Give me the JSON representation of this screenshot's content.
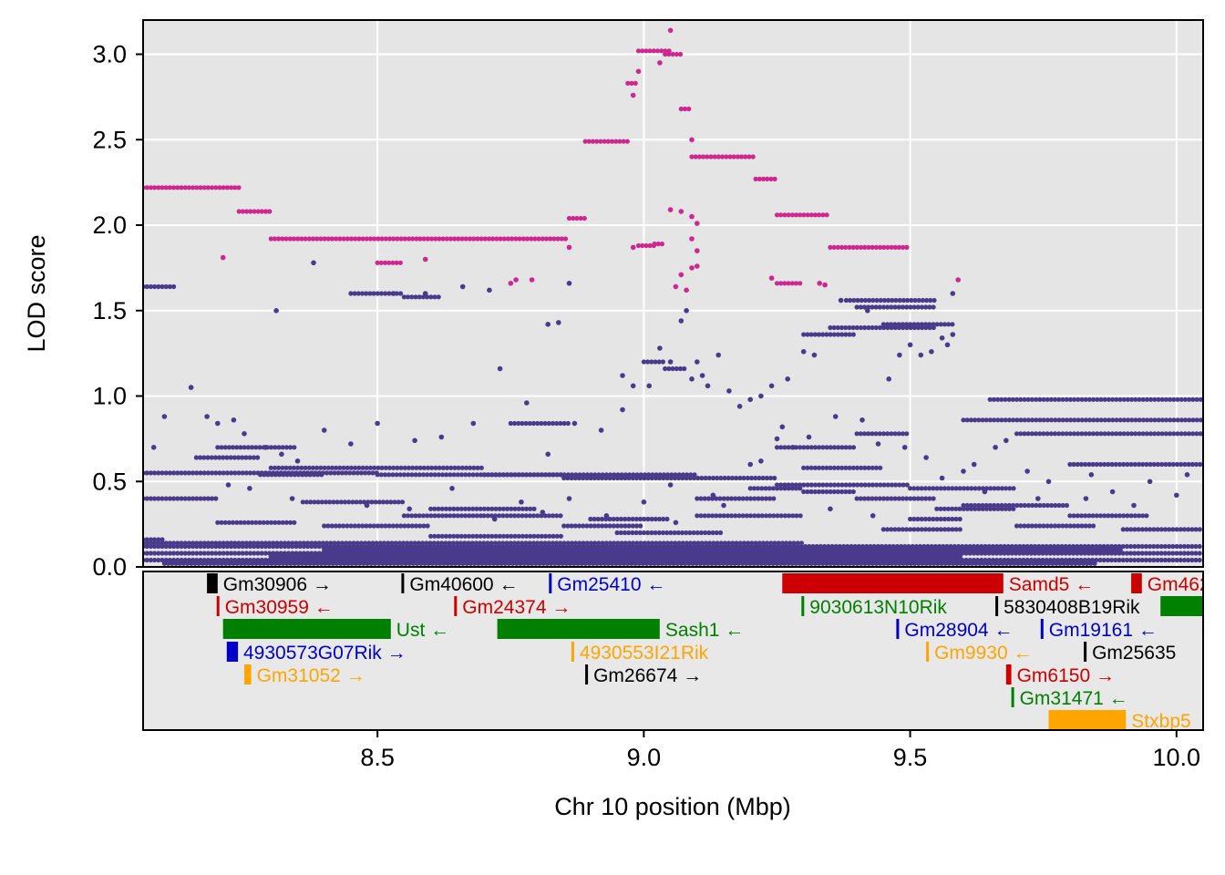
{
  "chart_data": {
    "type": "scatter",
    "xlabel": "Chr 10 position (Mbp)",
    "ylabel": "LOD score",
    "xlim": [
      8.06,
      10.05
    ],
    "ylim": [
      0,
      3.2
    ],
    "x_ticks": [
      {
        "value": 8.5,
        "label": "8.5"
      },
      {
        "value": 9.0,
        "label": "9.0"
      },
      {
        "value": 9.5,
        "label": "9.5"
      },
      {
        "value": 10.0,
        "label": "10.0"
      }
    ],
    "y_ticks": [
      {
        "value": 0.0,
        "label": "0.0"
      },
      {
        "value": 0.5,
        "label": "0.5"
      },
      {
        "value": 1.0,
        "label": "1.0"
      },
      {
        "value": 1.5,
        "label": "1.5"
      },
      {
        "value": 2.0,
        "label": "2.0"
      },
      {
        "value": 2.5,
        "label": "2.5"
      },
      {
        "value": 3.0,
        "label": "3.0"
      }
    ],
    "grid": true,
    "colors": {
      "highlight": "#D02690",
      "background": "#4A3A8C",
      "panel": "#E5E5E5",
      "gridline": "#FFFFFF"
    },
    "series": [
      {
        "color": "#D02690",
        "segments": [
          [
            8.06,
            8.24,
            2.22
          ],
          [
            8.24,
            8.3,
            2.08
          ],
          [
            8.3,
            8.58,
            1.92
          ],
          [
            8.58,
            8.86,
            1.92
          ],
          [
            8.86,
            8.89,
            2.04
          ],
          [
            8.89,
            8.97,
            2.49
          ],
          [
            8.97,
            8.99,
            2.83
          ],
          [
            8.99,
            9.05,
            3.02
          ],
          [
            9.04,
            9.07,
            3.0
          ],
          [
            9.07,
            9.09,
            2.68
          ],
          [
            9.09,
            9.21,
            2.4
          ],
          [
            9.21,
            9.25,
            2.27
          ],
          [
            9.25,
            9.35,
            2.06
          ],
          [
            9.35,
            9.5,
            1.87
          ],
          [
            8.5,
            8.55,
            1.78
          ],
          [
            9.25,
            9.3,
            1.66
          ],
          [
            8.99,
            9.02,
            1.88
          ],
          [
            9.02,
            9.04,
            1.89
          ]
        ],
        "points": [
          [
            9.05,
            3.14
          ],
          [
            8.21,
            1.81
          ],
          [
            8.59,
            1.8
          ],
          [
            8.76,
            1.68
          ],
          [
            8.79,
            1.68
          ],
          [
            8.75,
            1.66
          ],
          [
            8.86,
            1.87
          ],
          [
            9.59,
            1.68
          ],
          [
            9.24,
            1.69
          ],
          [
            9.33,
            1.66
          ],
          [
            9.34,
            1.65
          ],
          [
            9.05,
            2.09
          ],
          [
            9.07,
            2.08
          ],
          [
            9.09,
            2.05
          ],
          [
            9.1,
            2.01
          ],
          [
            9.09,
            1.92
          ],
          [
            9.1,
            1.85
          ],
          [
            9.09,
            1.75
          ],
          [
            9.1,
            1.76
          ],
          [
            9.07,
            1.71
          ],
          [
            9.06,
            1.64
          ],
          [
            9.08,
            1.62
          ],
          [
            9.09,
            2.5
          ],
          [
            8.98,
            1.87
          ],
          [
            8.98,
            2.76
          ],
          [
            8.99,
            2.9
          ],
          [
            9.03,
            2.95
          ]
        ]
      },
      {
        "color": "#4A3A8C",
        "segments": [
          [
            8.06,
            10.05,
            0.08
          ],
          [
            8.06,
            10.05,
            0.04
          ],
          [
            8.06,
            10.05,
            0.12
          ],
          [
            8.1,
            9.85,
            0.02
          ],
          [
            8.3,
            9.6,
            0.06
          ],
          [
            8.4,
            9.9,
            0.1
          ],
          [
            8.06,
            8.1,
            0.16
          ],
          [
            8.06,
            9.3,
            0.14
          ],
          [
            8.06,
            8.5,
            0.55
          ],
          [
            8.3,
            8.7,
            0.58
          ],
          [
            8.5,
            8.85,
            0.54
          ],
          [
            8.7,
            9.1,
            0.54
          ],
          [
            8.85,
            9.25,
            0.52
          ],
          [
            9.25,
            9.5,
            0.48
          ],
          [
            9.5,
            9.7,
            0.46
          ],
          [
            9.6,
            10.05,
            0.86
          ],
          [
            9.65,
            10.05,
            0.98
          ],
          [
            9.7,
            10.05,
            0.78
          ],
          [
            9.8,
            10.05,
            0.6
          ],
          [
            8.16,
            8.28,
            0.64
          ],
          [
            8.2,
            8.35,
            0.7
          ],
          [
            8.28,
            8.4,
            0.54
          ],
          [
            8.36,
            8.55,
            0.38
          ],
          [
            8.55,
            8.7,
            0.3
          ],
          [
            8.6,
            8.85,
            0.18
          ],
          [
            8.75,
            8.86,
            0.84
          ],
          [
            8.7,
            8.85,
            0.3
          ],
          [
            8.85,
            9.0,
            0.24
          ],
          [
            8.9,
            9.05,
            0.28
          ],
          [
            8.95,
            9.15,
            0.2
          ],
          [
            9.1,
            9.3,
            0.3
          ],
          [
            9.25,
            9.4,
            0.7
          ],
          [
            9.3,
            9.45,
            0.58
          ],
          [
            9.35,
            9.55,
            1.4
          ],
          [
            9.45,
            9.58,
            1.42
          ],
          [
            9.38,
            9.55,
            1.56
          ],
          [
            9.4,
            9.55,
            1.52
          ],
          [
            8.06,
            8.12,
            1.64
          ],
          [
            8.45,
            8.55,
            1.6
          ],
          [
            8.55,
            8.62,
            1.58
          ],
          [
            9.0,
            9.04,
            1.2
          ],
          [
            9.04,
            9.08,
            1.16
          ],
          [
            9.3,
            9.4,
            1.36
          ],
          [
            9.4,
            9.5,
            0.78
          ],
          [
            9.45,
            9.6,
            0.22
          ],
          [
            9.55,
            9.7,
            0.34
          ],
          [
            9.6,
            9.8,
            0.36
          ],
          [
            9.7,
            9.85,
            0.24
          ],
          [
            9.8,
            9.95,
            0.3
          ],
          [
            9.9,
            10.05,
            0.22
          ],
          [
            8.06,
            8.2,
            0.4
          ],
          [
            8.2,
            8.35,
            0.26
          ],
          [
            8.4,
            8.6,
            0.24
          ],
          [
            8.6,
            8.8,
            0.34
          ],
          [
            9.1,
            9.25,
            0.4
          ],
          [
            9.2,
            9.3,
            0.46
          ],
          [
            9.3,
            9.4,
            0.44
          ],
          [
            9.4,
            9.55,
            0.4
          ],
          [
            9.5,
            9.6,
            0.28
          ]
        ],
        "points": [
          [
            8.31,
            1.5
          ],
          [
            8.38,
            1.78
          ],
          [
            8.53,
            1.6
          ],
          [
            8.59,
            1.6
          ],
          [
            8.66,
            1.64
          ],
          [
            8.71,
            1.62
          ],
          [
            8.73,
            1.16
          ],
          [
            8.82,
            1.42
          ],
          [
            8.84,
            1.43
          ],
          [
            8.86,
            1.66
          ],
          [
            8.96,
            1.12
          ],
          [
            8.98,
            1.06
          ],
          [
            9.01,
            1.06
          ],
          [
            9.03,
            1.28
          ],
          [
            9.05,
            1.2
          ],
          [
            9.07,
            1.44
          ],
          [
            9.08,
            1.5
          ],
          [
            9.09,
            1.1
          ],
          [
            9.1,
            1.2
          ],
          [
            9.11,
            1.12
          ],
          [
            9.12,
            1.06
          ],
          [
            9.14,
            1.24
          ],
          [
            9.16,
            1.03
          ],
          [
            9.18,
            0.94
          ],
          [
            9.2,
            0.98
          ],
          [
            9.22,
            1.0
          ],
          [
            9.24,
            1.06
          ],
          [
            9.27,
            1.1
          ],
          [
            9.3,
            1.26
          ],
          [
            9.32,
            1.24
          ],
          [
            9.37,
            1.56
          ],
          [
            9.42,
            1.5
          ],
          [
            9.46,
            1.1
          ],
          [
            9.48,
            1.24
          ],
          [
            9.5,
            1.3
          ],
          [
            9.52,
            1.24
          ],
          [
            9.54,
            1.26
          ],
          [
            9.56,
            1.34
          ],
          [
            9.58,
            1.36
          ],
          [
            9.58,
            1.6
          ],
          [
            9.57,
            1.3
          ],
          [
            8.15,
            1.05
          ],
          [
            8.18,
            0.88
          ],
          [
            8.2,
            0.84
          ],
          [
            8.23,
            0.86
          ],
          [
            8.25,
            0.78
          ],
          [
            8.29,
            0.7
          ],
          [
            8.32,
            0.66
          ],
          [
            8.35,
            0.62
          ],
          [
            8.4,
            0.8
          ],
          [
            8.45,
            0.72
          ],
          [
            8.5,
            0.84
          ],
          [
            8.57,
            0.74
          ],
          [
            8.62,
            0.76
          ],
          [
            8.68,
            0.84
          ],
          [
            8.78,
            0.96
          ],
          [
            8.82,
            0.66
          ],
          [
            8.87,
            0.84
          ],
          [
            8.92,
            0.8
          ],
          [
            8.96,
            0.92
          ],
          [
            9.05,
            0.48
          ],
          [
            9.13,
            0.42
          ],
          [
            9.2,
            0.6
          ],
          [
            9.22,
            0.62
          ],
          [
            9.25,
            0.75
          ],
          [
            9.26,
            0.82
          ],
          [
            9.28,
            0.7
          ],
          [
            9.31,
            0.76
          ],
          [
            9.36,
            0.88
          ],
          [
            9.41,
            0.86
          ],
          [
            9.44,
            0.72
          ],
          [
            9.49,
            0.7
          ],
          [
            9.53,
            0.64
          ],
          [
            9.6,
            0.56
          ],
          [
            9.62,
            0.6
          ],
          [
            9.66,
            0.7
          ],
          [
            9.68,
            0.74
          ],
          [
            9.72,
            0.56
          ],
          [
            9.76,
            0.5
          ],
          [
            9.84,
            0.54
          ],
          [
            9.88,
            0.44
          ],
          [
            9.95,
            0.5
          ],
          [
            10.02,
            0.54
          ],
          [
            8.1,
            0.88
          ],
          [
            8.08,
            0.7
          ],
          [
            8.22,
            0.48
          ],
          [
            8.26,
            0.46
          ],
          [
            8.34,
            0.4
          ],
          [
            8.48,
            0.36
          ],
          [
            8.56,
            0.34
          ],
          [
            8.64,
            0.46
          ],
          [
            8.72,
            0.28
          ],
          [
            8.77,
            0.38
          ],
          [
            8.81,
            0.32
          ],
          [
            8.86,
            0.4
          ],
          [
            8.93,
            0.3
          ],
          [
            9.0,
            0.38
          ],
          [
            9.06,
            0.26
          ],
          [
            9.15,
            0.36
          ],
          [
            9.35,
            0.34
          ],
          [
            9.43,
            0.3
          ],
          [
            9.56,
            0.52
          ],
          [
            9.64,
            0.44
          ],
          [
            9.74,
            0.4
          ],
          [
            9.83,
            0.4
          ],
          [
            9.92,
            0.36
          ],
          [
            10.0,
            0.42
          ]
        ]
      }
    ],
    "genes": [
      {
        "name": "Gm30906",
        "start": 8.18,
        "end": 8.2,
        "color": "#000000",
        "strand": "→",
        "row": 0
      },
      {
        "name": "Gm40600",
        "start": 8.545,
        "end": 8.55,
        "color": "#000000",
        "strand": "←",
        "row": 0
      },
      {
        "name": "Gm25410",
        "start": 8.822,
        "end": 8.826,
        "color": "#0000CC",
        "strand": "←",
        "row": 0
      },
      {
        "name": "Samd5",
        "start": 9.26,
        "end": 9.675,
        "color": "#CC0000",
        "strand": "←",
        "row": 0
      },
      {
        "name": "Gm462",
        "start": 9.915,
        "end": 9.935,
        "color": "#CC0000",
        "strand": "",
        "row": 0
      },
      {
        "name": "Gm30959",
        "start": 8.198,
        "end": 8.202,
        "color": "#CC0000",
        "strand": "←",
        "row": 1
      },
      {
        "name": "Gm24374",
        "start": 8.644,
        "end": 8.648,
        "color": "#CC0000",
        "strand": "→",
        "row": 1
      },
      {
        "name": "9030613N10Rik",
        "start": 9.296,
        "end": 9.3,
        "color": "#008000",
        "strand": "",
        "row": 1
      },
      {
        "name": "5830408B19Rik",
        "start": 9.66,
        "end": 9.664,
        "color": "#000000",
        "strand": "",
        "row": 1
      },
      {
        "name": "",
        "start": 9.97,
        "end": 10.05,
        "color": "#008000",
        "strand": "",
        "row": 1
      },
      {
        "name": "Ust",
        "start": 8.21,
        "end": 8.525,
        "color": "#008000",
        "strand": "←",
        "row": 2
      },
      {
        "name": "Sash1",
        "start": 8.725,
        "end": 9.03,
        "color": "#008000",
        "strand": "←",
        "row": 2
      },
      {
        "name": "Gm28904",
        "start": 9.474,
        "end": 9.478,
        "color": "#0000CC",
        "strand": "←",
        "row": 2
      },
      {
        "name": "Gm19161",
        "start": 9.745,
        "end": 9.749,
        "color": "#0000CC",
        "strand": "←",
        "row": 2
      },
      {
        "name": "4930573G07Rik",
        "start": 8.217,
        "end": 8.238,
        "color": "#0000CC",
        "strand": "→",
        "row": 3
      },
      {
        "name": "4930553I21Rik",
        "start": 8.864,
        "end": 8.868,
        "color": "#FFA500",
        "strand": "",
        "row": 3
      },
      {
        "name": "Gm9930",
        "start": 9.53,
        "end": 9.534,
        "color": "#FFA500",
        "strand": "←",
        "row": 3
      },
      {
        "name": "Gm25635",
        "start": 9.826,
        "end": 9.83,
        "color": "#000000",
        "strand": "",
        "row": 3
      },
      {
        "name": "Gm31052",
        "start": 8.25,
        "end": 8.263,
        "color": "#FFA500",
        "strand": "→",
        "row": 4
      },
      {
        "name": "Gm26674",
        "start": 8.89,
        "end": 8.894,
        "color": "#000000",
        "strand": "→",
        "row": 4
      },
      {
        "name": "Gm6150",
        "start": 9.68,
        "end": 9.69,
        "color": "#CC0000",
        "strand": "→",
        "row": 4
      },
      {
        "name": "Gm31471",
        "start": 9.69,
        "end": 9.694,
        "color": "#008000",
        "strand": "←",
        "row": 5
      },
      {
        "name": "Stxbp5",
        "start": 9.76,
        "end": 9.905,
        "color": "#FFA500",
        "strand": "",
        "row": 6
      }
    ]
  }
}
